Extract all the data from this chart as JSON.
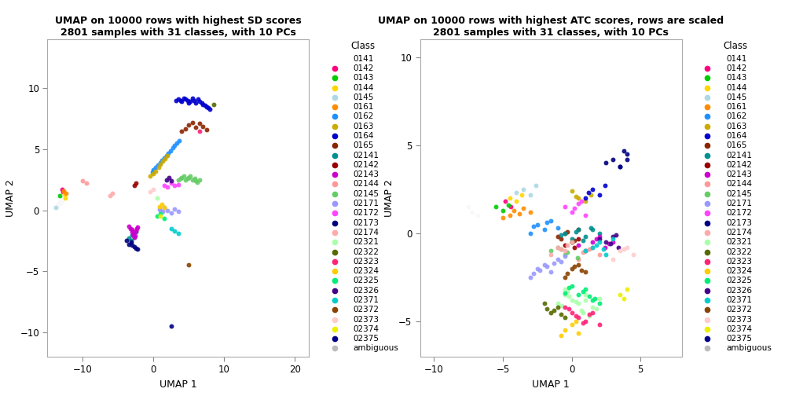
{
  "title1": "UMAP on 10000 rows with highest SD scores\n2801 samples with 31 classes, with 10 PCs",
  "title2": "UMAP on 10000 rows with highest ATC scores, rows are scaled\n2801 samples with 31 classes, with 10 PCs",
  "xlabel": "UMAP 1",
  "ylabel": "UMAP 2",
  "legend_title": "Class",
  "classes": [
    "0141",
    "0142",
    "0143",
    "0144",
    "0145",
    "0161",
    "0162",
    "0163",
    "0164",
    "0165",
    "02141",
    "02142",
    "02143",
    "02144",
    "02145",
    "02171",
    "02172",
    "02173",
    "02174",
    "02321",
    "02322",
    "02323",
    "02324",
    "02325",
    "02326",
    "02371",
    "02372",
    "02373",
    "02374",
    "02375",
    "ambiguous"
  ],
  "class_colors": {
    "0141": "#F8F8F8",
    "0142": "#FF007F",
    "0143": "#00CC00",
    "0144": "#FFD700",
    "0145": "#ADD8E6",
    "0161": "#FF8C00",
    "0162": "#1E90FF",
    "0163": "#CCAA00",
    "0164": "#0000CD",
    "0165": "#8B2500",
    "02141": "#009090",
    "02142": "#990000",
    "02143": "#CC00CC",
    "02144": "#FF9999",
    "02145": "#66CC66",
    "02171": "#9999FF",
    "02172": "#FF44FF",
    "02173": "#000080",
    "02174": "#FFAAAA",
    "02321": "#AAFFAA",
    "02322": "#556B00",
    "02323": "#FF2277",
    "02324": "#FFCC00",
    "02325": "#00EE76",
    "02326": "#440088",
    "02371": "#00CCCC",
    "02372": "#884400",
    "02373": "#FFCCCC",
    "02374": "#EEEE00",
    "02375": "#000088",
    "ambiguous": "#BBBBBB"
  },
  "xlim1": [
    -15,
    22
  ],
  "ylim1": [
    -12,
    14
  ],
  "xlim2": [
    -11,
    8
  ],
  "ylim2": [
    -7,
    11
  ],
  "xticks1": [
    -10,
    0,
    10,
    20
  ],
  "yticks1": [
    -10,
    -5,
    0,
    5,
    10
  ],
  "xticks2": [
    -10,
    -5,
    0,
    5
  ],
  "yticks2": [
    -5,
    0,
    5,
    10
  ],
  "point_size": 18,
  "font_size": 9,
  "title_fontsize": 9,
  "background_color": "#FFFFFF",
  "plot1_data": {
    "0141": {
      "x": [
        -13.5,
        -13.3,
        -13.2,
        -13.0,
        -12.9,
        -13.6,
        -13.1
      ],
      "y": [
        0.5,
        0.7,
        0.9,
        1.0,
        0.8,
        0.3,
        0.6
      ]
    },
    "0142": {
      "x": [
        -12.8,
        -12.9
      ],
      "y": [
        1.5,
        1.7
      ]
    },
    "0143": {
      "x": [
        -13.3
      ],
      "y": [
        1.2
      ]
    },
    "0144": {
      "x": [
        -12.6,
        -12.5
      ],
      "y": [
        1.3,
        1.0
      ]
    },
    "0145": {
      "x": [
        -13.8
      ],
      "y": [
        0.2
      ]
    },
    "0161": {
      "x": [
        -12.7,
        -12.4
      ],
      "y": [
        1.6,
        1.4
      ]
    },
    "0162": {
      "x": [
        -0.2,
        0.0,
        0.3,
        0.6,
        0.9,
        1.2,
        1.5,
        1.8,
        2.1,
        2.4,
        2.7,
        3.0,
        3.3,
        3.6
      ],
      "y": [
        3.1,
        3.3,
        3.5,
        3.7,
        3.9,
        4.1,
        4.3,
        4.5,
        4.7,
        4.9,
        5.1,
        5.3,
        5.5,
        5.7
      ]
    },
    "0163": {
      "x": [
        -0.5,
        0.0,
        0.3,
        0.7,
        1.0,
        1.3,
        1.6,
        2.0
      ],
      "y": [
        2.8,
        3.0,
        3.2,
        3.5,
        3.8,
        4.0,
        4.2,
        4.5
      ]
    },
    "0164": {
      "x": [
        3.2,
        3.5,
        3.8,
        4.0,
        4.3,
        4.5,
        4.8,
        5.0,
        5.2,
        5.5,
        5.7,
        6.0,
        6.3,
        6.5,
        6.8,
        7.0,
        7.3,
        7.5,
        7.7,
        8.0
      ],
      "y": [
        9.0,
        9.1,
        9.0,
        8.9,
        9.2,
        9.1,
        9.0,
        8.8,
        8.9,
        9.2,
        9.0,
        8.8,
        9.1,
        8.9,
        8.8,
        8.7,
        8.6,
        8.5,
        8.4,
        8.3
      ]
    },
    "0165": {
      "x": [
        4.0,
        4.5,
        5.0,
        5.5,
        6.0,
        6.5,
        7.0,
        7.5
      ],
      "y": [
        6.5,
        6.7,
        7.0,
        7.2,
        6.8,
        7.1,
        6.9,
        6.6
      ]
    },
    "02141": {
      "x": [
        -3.5,
        -3.2,
        -3.0,
        -2.7,
        -2.5
      ],
      "y": [
        -2.3,
        -2.5,
        -2.0,
        -2.2,
        -1.8
      ]
    },
    "02142": {
      "x": [
        -2.7,
        -2.5
      ],
      "y": [
        2.0,
        2.2
      ]
    },
    "02143": {
      "x": [
        -3.3,
        -3.1,
        -2.9,
        -2.7,
        -2.5,
        -2.3,
        -3.5,
        -3.0,
        -2.8,
        -2.6,
        -2.4
      ],
      "y": [
        -1.5,
        -1.8,
        -2.0,
        -2.2,
        -1.7,
        -1.4,
        -1.3,
        -1.6,
        -1.9,
        -2.1,
        -1.5
      ]
    },
    "02144": {
      "x": [
        -10.0,
        -9.5
      ],
      "y": [
        2.4,
        2.2
      ]
    },
    "02145": {
      "x": [
        3.5,
        3.8,
        4.0,
        4.3,
        4.5,
        4.8,
        5.0,
        5.2,
        5.5,
        5.8,
        6.0,
        6.2,
        6.5
      ],
      "y": [
        2.5,
        2.6,
        2.7,
        2.8,
        2.5,
        2.6,
        2.7,
        2.8,
        2.5,
        2.6,
        2.4,
        2.3,
        2.5
      ]
    },
    "02171": {
      "x": [
        0.8,
        1.0,
        1.3,
        1.5,
        2.0,
        2.5,
        3.0,
        3.5
      ],
      "y": [
        0.1,
        0.0,
        -0.1,
        0.2,
        0.0,
        -0.2,
        0.1,
        -0.1
      ]
    },
    "02172": {
      "x": [
        1.5,
        2.0,
        2.5,
        3.0,
        3.5
      ],
      "y": [
        2.0,
        1.9,
        2.2,
        2.0,
        2.1
      ]
    },
    "02173": {
      "x": [
        -3.8,
        -3.5,
        -3.2,
        -3.0,
        -2.7,
        -2.5,
        -2.3
      ],
      "y": [
        -2.5,
        -2.8,
        -2.6,
        -2.9,
        -3.0,
        -3.1,
        -3.2
      ]
    },
    "02174": {
      "x": [
        -6.2,
        -5.8
      ],
      "y": [
        1.2,
        1.4
      ]
    },
    "02321": {
      "x": [
        0.5
      ],
      "y": [
        1.0
      ]
    },
    "02322": {
      "x": [
        8.5
      ],
      "y": [
        8.7
      ]
    },
    "02323": {
      "x": [
        6.5
      ],
      "y": [
        6.5
      ]
    },
    "02324": {
      "x": [
        0.8,
        1.2,
        1.5
      ],
      "y": [
        0.3,
        0.5,
        0.2
      ]
    },
    "02325": {
      "x": [
        0.5,
        1.0,
        1.5
      ],
      "y": [
        -0.5,
        -0.3,
        -0.7
      ]
    },
    "02326": {
      "x": [
        1.8,
        2.2,
        2.5
      ],
      "y": [
        2.5,
        2.7,
        2.4
      ]
    },
    "02371": {
      "x": [
        2.5,
        3.0,
        3.5
      ],
      "y": [
        -1.5,
        -1.7,
        -1.9
      ]
    },
    "02372": {
      "x": [
        5.0
      ],
      "y": [
        -4.5
      ]
    },
    "02373": {
      "x": [
        -0.5,
        0.0
      ],
      "y": [
        1.5,
        1.7
      ]
    },
    "02374": {
      "x": [
        1.0
      ],
      "y": [
        -0.5
      ]
    },
    "02375": {
      "x": [
        2.5
      ],
      "y": [
        -9.5
      ]
    },
    "ambiguous": {
      "x": [],
      "y": []
    }
  },
  "plot2_data": {
    "0141": {
      "x": [
        -7.5,
        -7.2,
        -6.8
      ],
      "y": [
        1.5,
        1.2,
        1.0
      ]
    },
    "0142": {
      "x": [
        -4.8,
        -4.4
      ],
      "y": [
        1.8,
        1.5
      ]
    },
    "0143": {
      "x": [
        -5.5,
        -5.0,
        -4.6
      ],
      "y": [
        1.5,
        1.3,
        1.6
      ]
    },
    "0144": {
      "x": [
        -4.5,
        -4.0,
        -3.6
      ],
      "y": [
        2.0,
        1.8,
        2.2
      ]
    },
    "0145": {
      "x": [
        -3.5,
        -3.0,
        -2.6,
        -4.0
      ],
      "y": [
        2.5,
        2.2,
        2.7,
        2.3
      ]
    },
    "0161": {
      "x": [
        -4.5,
        -4.2,
        -3.8,
        -3.5,
        -3.0,
        -5.0
      ],
      "y": [
        1.0,
        1.3,
        1.1,
        1.4,
        1.2,
        0.9
      ]
    },
    "0162": {
      "x": [
        -2.5,
        -2.0,
        -1.5,
        -1.0,
        -3.0,
        -2.8,
        -1.8
      ],
      "y": [
        0.5,
        0.2,
        0.7,
        0.3,
        0.0,
        0.4,
        0.6
      ]
    },
    "0163": {
      "x": [
        0.5,
        1.0,
        1.4,
        0.0,
        0.3
      ],
      "y": [
        2.0,
        1.8,
        2.2,
        2.4,
        2.1
      ]
    },
    "0164": {
      "x": [
        1.5,
        2.0,
        2.4,
        1.0,
        1.2
      ],
      "y": [
        2.5,
        2.2,
        2.7,
        2.0,
        2.3
      ]
    },
    "0165": {
      "x": [
        -1.0,
        -0.5,
        0.0,
        0.5,
        -0.8,
        -0.3,
        0.2
      ],
      "y": [
        -0.2,
        0.0,
        -0.5,
        0.2,
        -0.3,
        0.1,
        -0.4
      ]
    },
    "02141": {
      "x": [
        -0.5,
        0.0,
        0.5,
        1.0,
        1.4,
        2.0,
        -0.8,
        0.3,
        0.8,
        1.5
      ],
      "y": [
        0.0,
        -0.3,
        0.2,
        -0.2,
        0.3,
        0.0,
        -0.1,
        0.1,
        -0.4,
        0.2
      ]
    },
    "02142": {
      "x": [
        0.0,
        0.5,
        -0.5,
        0.2
      ],
      "y": [
        -0.5,
        -0.3,
        -0.7,
        -0.8
      ]
    },
    "02143": {
      "x": [
        1.5,
        2.0,
        2.4,
        3.0,
        1.0,
        0.5,
        1.8,
        2.7
      ],
      "y": [
        -0.5,
        -0.2,
        -0.8,
        -0.5,
        -1.0,
        -0.7,
        -0.3,
        -0.6
      ]
    },
    "02144": {
      "x": [
        1.0,
        1.5,
        2.0,
        0.5,
        0.8,
        1.3
      ],
      "y": [
        -1.0,
        -0.8,
        -1.2,
        -1.5,
        -1.1,
        -0.9
      ]
    },
    "02145": {
      "x": [
        -1.5,
        -1.0,
        -0.5,
        0.0,
        0.4,
        -0.8,
        -0.3
      ],
      "y": [
        -1.0,
        -0.8,
        -1.2,
        -0.5,
        -1.4,
        -0.9,
        -1.1
      ]
    },
    "02171": {
      "x": [
        -2.5,
        -2.0,
        -1.5,
        -1.0,
        -3.0,
        -2.8,
        -1.8,
        -0.8,
        -2.3,
        -1.3,
        -0.5
      ],
      "y": [
        -2.0,
        -1.8,
        -2.2,
        -1.5,
        -2.5,
        -2.3,
        -1.9,
        -1.6,
        -2.1,
        -1.7,
        -1.3
      ]
    },
    "02172": {
      "x": [
        -0.5,
        0.0,
        0.5,
        1.0,
        0.2,
        0.7
      ],
      "y": [
        1.5,
        1.2,
        1.7,
        1.0,
        1.4,
        1.8
      ]
    },
    "02173": {
      "x": [
        3.0,
        3.5,
        4.0,
        2.5,
        3.8
      ],
      "y": [
        4.2,
        3.8,
        4.5,
        4.0,
        4.7
      ]
    },
    "02174": {
      "x": [
        -1.0,
        -0.5,
        0.0,
        -1.5,
        -0.8,
        -0.3
      ],
      "y": [
        -0.8,
        -1.0,
        -0.5,
        -1.2,
        -0.9,
        -0.7
      ]
    },
    "02321": {
      "x": [
        -0.5,
        0.0,
        0.5,
        1.0,
        1.5,
        -1.0,
        2.0,
        0.8,
        -0.3,
        1.3,
        0.3,
        -0.7,
        1.8,
        -0.2,
        0.7,
        -0.5,
        1.0
      ],
      "y": [
        -3.5,
        -3.8,
        -4.0,
        -3.5,
        -4.2,
        -4.0,
        -3.7,
        -4.5,
        -3.3,
        -4.7,
        -3.9,
        -4.1,
        -4.3,
        -3.6,
        -4.4,
        -3.2,
        -3.8
      ]
    },
    "02322": {
      "x": [
        -1.5,
        -1.0,
        -0.5,
        -2.0,
        -1.8,
        -0.8,
        -1.3
      ],
      "y": [
        -4.5,
        -4.2,
        -4.8,
        -4.0,
        -4.3,
        -4.6,
        -4.4
      ]
    },
    "02323": {
      "x": [
        0.0,
        0.5,
        1.0,
        1.5,
        2.0,
        -0.5,
        0.3,
        0.8,
        1.3,
        -0.2
      ],
      "y": [
        -4.5,
        -4.8,
        -5.0,
        -4.5,
        -5.2,
        -4.2,
        -4.7,
        -5.1,
        -4.6,
        -4.3
      ]
    },
    "02324": {
      "x": [
        -0.5,
        0.0,
        0.5,
        -0.8,
        0.3
      ],
      "y": [
        -5.5,
        -5.2,
        -5.7,
        -5.8,
        -5.0
      ]
    },
    "02325": {
      "x": [
        0.5,
        1.0,
        1.5,
        0.0,
        2.0,
        -0.5,
        0.8,
        1.3,
        -0.2,
        1.7
      ],
      "y": [
        -3.5,
        -3.2,
        -3.8,
        -3.0,
        -4.0,
        -3.4,
        -3.3,
        -3.6,
        -3.1,
        -3.7
      ]
    },
    "02326": {
      "x": [
        2.5,
        3.0,
        3.4,
        2.0,
        2.8,
        3.2
      ],
      "y": [
        -0.5,
        -0.2,
        -0.8,
        -0.3,
        -0.6,
        -0.1
      ]
    },
    "02371": {
      "x": [
        1.5,
        2.0,
        2.5,
        1.0,
        3.0,
        1.8,
        2.3
      ],
      "y": [
        -0.8,
        -0.5,
        -1.2,
        -1.0,
        -0.3,
        -0.7,
        -0.9
      ]
    },
    "02372": {
      "x": [
        0.0,
        0.5,
        -0.5,
        1.0,
        0.2,
        -0.3,
        0.7
      ],
      "y": [
        -2.0,
        -1.8,
        -2.5,
        -2.2,
        -1.9,
        -2.3,
        -2.1
      ]
    },
    "02373": {
      "x": [
        3.5,
        4.0,
        3.0,
        4.5,
        3.8
      ],
      "y": [
        -1.0,
        -0.8,
        -1.5,
        -1.2,
        -0.9
      ]
    },
    "02374": {
      "x": [
        3.5,
        4.0,
        3.8
      ],
      "y": [
        -3.5,
        -3.2,
        -3.7
      ]
    },
    "02375": {
      "x": [
        3.5,
        4.0
      ],
      "y": [
        3.8,
        4.2
      ]
    },
    "ambiguous": {
      "x": [],
      "y": []
    }
  }
}
